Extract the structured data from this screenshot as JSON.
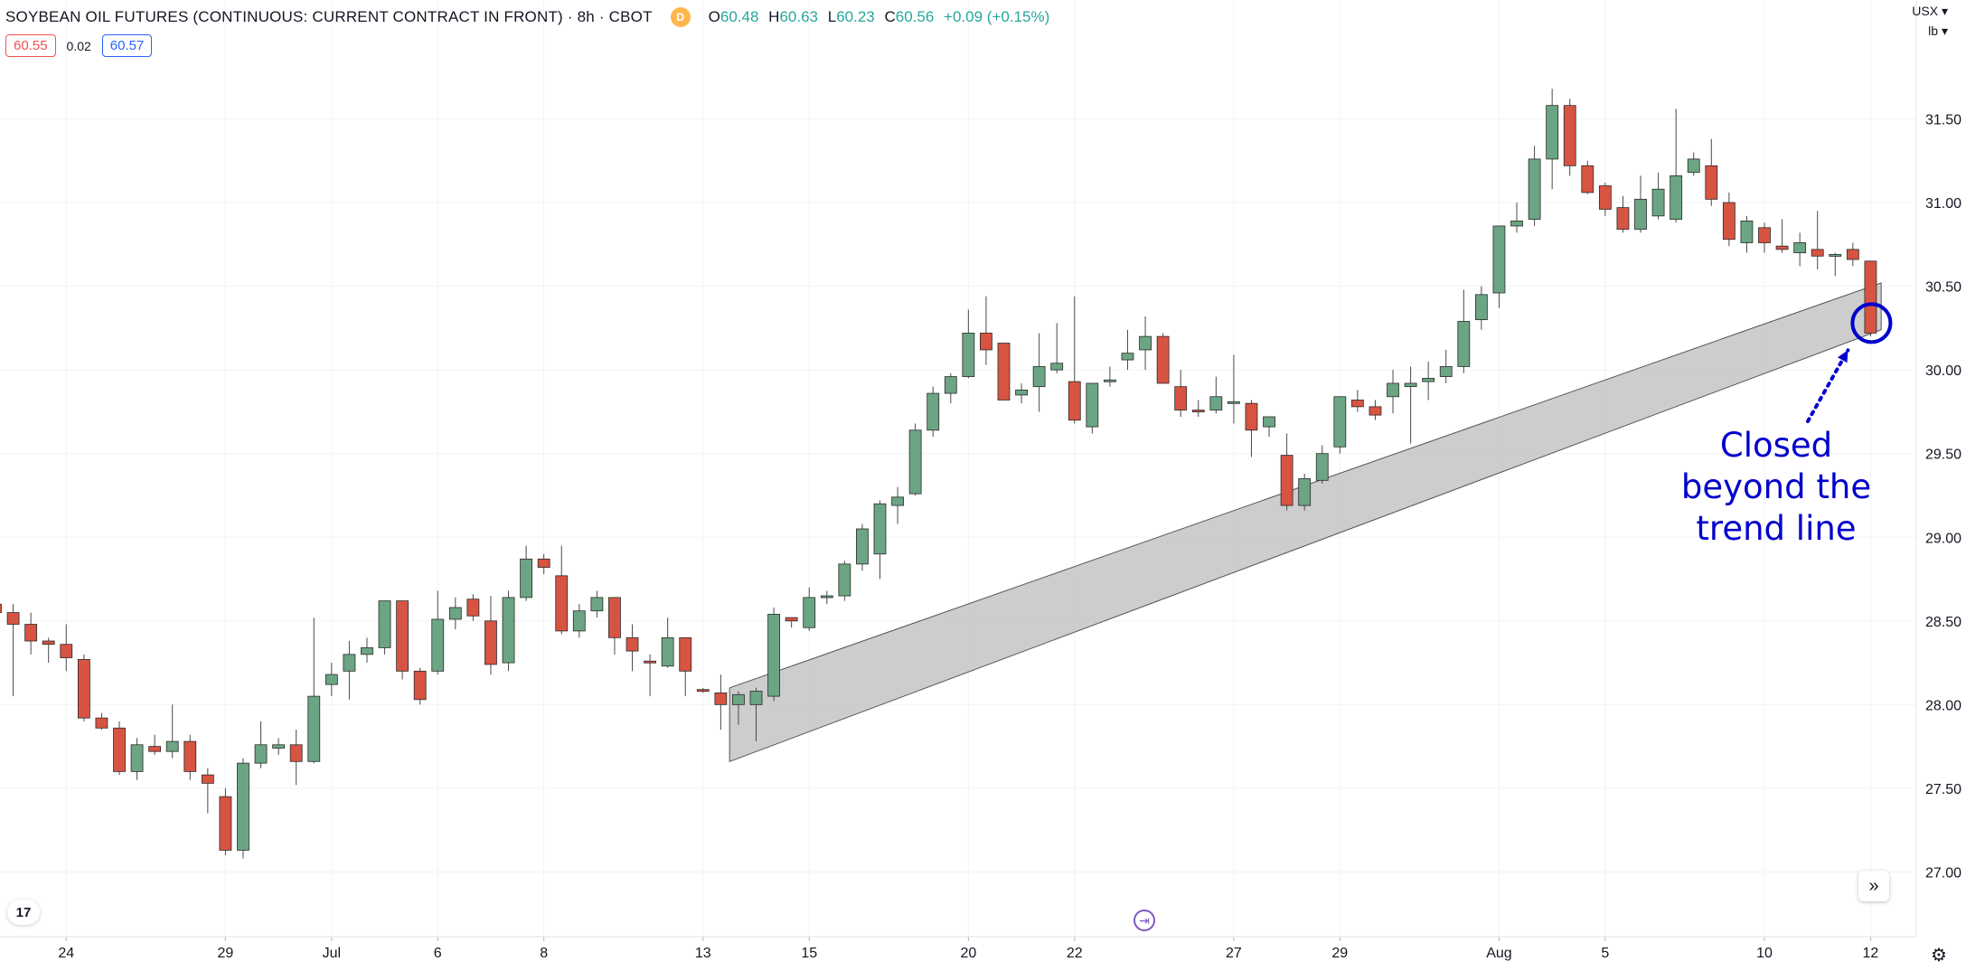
{
  "header": {
    "symbol": "SOYBEAN OIL FUTURES (CONTINUOUS: CURRENT CONTRACT IN FRONT) · 8h · CBOT",
    "delay_badge": "D",
    "open_label": "O",
    "open": "60.48",
    "high_label": "H",
    "high": "60.63",
    "low_label": "L",
    "low": "60.23",
    "close_label": "C",
    "close": "60.56",
    "change": "+0.09 (+0.15%)"
  },
  "quote": {
    "bid": "60.55",
    "spread": "0.02",
    "ask": "60.57"
  },
  "currency": {
    "code": "USX",
    "unit": "lb"
  },
  "buttons": {
    "tv_logo": "17",
    "scroll_right": "»",
    "goto_date": "⇥",
    "settings": "⚙"
  },
  "annotation": {
    "line1": "Closed",
    "line2": "beyond the",
    "line3": "trend line"
  },
  "colors": {
    "up": "#6ba583",
    "down": "#d75442",
    "annotation": "#0000cc",
    "trend_fill": "#c8c8c8"
  },
  "chart_data": {
    "type": "candlestick",
    "ylim": [
      26.7,
      31.9
    ],
    "y_ticks": [
      "27.00",
      "27.50",
      "28.00",
      "28.50",
      "29.00",
      "29.50",
      "30.00",
      "30.50",
      "31.00",
      "31.50"
    ],
    "x_ticks": [
      {
        "label": "24",
        "index": 4
      },
      {
        "label": "29",
        "index": 13
      },
      {
        "label": "Jul",
        "index": 19
      },
      {
        "label": "6",
        "index": 25
      },
      {
        "label": "8",
        "index": 31
      },
      {
        "label": "13",
        "index": 40
      },
      {
        "label": "15",
        "index": 46
      },
      {
        "label": "20",
        "index": 55
      },
      {
        "label": "22",
        "index": 61
      },
      {
        "label": "27",
        "index": 70
      },
      {
        "label": "29",
        "index": 76
      },
      {
        "label": "Aug",
        "index": 85
      },
      {
        "label": "5",
        "index": 91
      },
      {
        "label": "10",
        "index": 100
      },
      {
        "label": "12",
        "index": 106
      }
    ],
    "candles": [
      [
        28.6,
        28.65,
        28.5,
        28.55
      ],
      [
        28.55,
        28.6,
        28.05,
        28.48
      ],
      [
        28.48,
        28.55,
        28.3,
        28.38
      ],
      [
        28.38,
        28.4,
        28.25,
        28.36
      ],
      [
        28.36,
        28.48,
        28.2,
        28.28
      ],
      [
        28.27,
        28.3,
        27.9,
        27.92
      ],
      [
        27.92,
        27.95,
        27.85,
        27.86
      ],
      [
        27.86,
        27.9,
        27.58,
        27.6
      ],
      [
        27.6,
        27.8,
        27.55,
        27.76
      ],
      [
        27.75,
        27.82,
        27.7,
        27.72
      ],
      [
        27.72,
        28.0,
        27.68,
        27.78
      ],
      [
        27.78,
        27.82,
        27.55,
        27.6
      ],
      [
        27.58,
        27.62,
        27.35,
        27.53
      ],
      [
        27.45,
        27.5,
        27.1,
        27.13
      ],
      [
        27.13,
        27.68,
        27.08,
        27.65
      ],
      [
        27.65,
        27.9,
        27.62,
        27.76
      ],
      [
        27.74,
        27.8,
        27.7,
        27.76
      ],
      [
        27.76,
        27.85,
        27.52,
        27.66
      ],
      [
        27.66,
        28.52,
        27.65,
        28.05
      ],
      [
        28.12,
        28.25,
        28.05,
        28.18
      ],
      [
        28.2,
        28.38,
        28.03,
        28.3
      ],
      [
        28.3,
        28.4,
        28.25,
        28.34
      ],
      [
        28.34,
        28.62,
        28.3,
        28.62
      ],
      [
        28.62,
        28.62,
        28.15,
        28.2
      ],
      [
        28.2,
        28.22,
        28.0,
        28.03
      ],
      [
        28.2,
        28.68,
        28.18,
        28.51
      ],
      [
        28.51,
        28.64,
        28.45,
        28.58
      ],
      [
        28.63,
        28.66,
        28.5,
        28.53
      ],
      [
        28.5,
        28.65,
        28.18,
        28.24
      ],
      [
        28.25,
        28.68,
        28.2,
        28.64
      ],
      [
        28.64,
        28.95,
        28.62,
        28.87
      ],
      [
        28.87,
        28.9,
        28.78,
        28.82
      ],
      [
        28.77,
        28.95,
        28.42,
        28.44
      ],
      [
        28.44,
        28.6,
        28.4,
        28.56
      ],
      [
        28.56,
        28.68,
        28.52,
        28.64
      ],
      [
        28.64,
        28.64,
        28.3,
        28.4
      ],
      [
        28.4,
        28.48,
        28.2,
        28.32
      ],
      [
        28.26,
        28.3,
        28.05,
        28.25
      ],
      [
        28.23,
        28.52,
        28.22,
        28.4
      ],
      [
        28.4,
        28.4,
        28.05,
        28.2
      ],
      [
        28.09,
        28.1,
        28.07,
        28.08
      ],
      [
        28.07,
        28.18,
        27.85,
        28.0
      ],
      [
        28.0,
        28.08,
        27.88,
        28.06
      ],
      [
        28.0,
        28.1,
        27.78,
        28.08
      ],
      [
        28.05,
        28.58,
        28.02,
        28.54
      ],
      [
        28.52,
        28.52,
        28.46,
        28.5
      ],
      [
        28.46,
        28.7,
        28.44,
        28.64
      ],
      [
        28.64,
        28.68,
        28.6,
        28.65
      ],
      [
        28.65,
        28.86,
        28.62,
        28.84
      ],
      [
        28.84,
        29.08,
        28.8,
        29.05
      ],
      [
        28.9,
        29.22,
        28.75,
        29.2
      ],
      [
        29.19,
        29.3,
        29.08,
        29.24
      ],
      [
        29.26,
        29.68,
        29.25,
        29.64
      ],
      [
        29.64,
        29.9,
        29.6,
        29.86
      ],
      [
        29.86,
        29.98,
        29.8,
        29.96
      ],
      [
        29.96,
        30.36,
        29.95,
        30.22
      ],
      [
        30.22,
        30.44,
        30.03,
        30.12
      ],
      [
        30.16,
        30.16,
        29.82,
        29.82
      ],
      [
        29.85,
        29.92,
        29.8,
        29.88
      ],
      [
        29.9,
        30.22,
        29.75,
        30.02
      ],
      [
        30.0,
        30.28,
        29.98,
        30.04
      ],
      [
        29.93,
        30.44,
        29.68,
        29.7
      ],
      [
        29.66,
        29.92,
        29.62,
        29.92
      ],
      [
        29.93,
        30.02,
        29.9,
        29.94
      ],
      [
        30.06,
        30.24,
        30.0,
        30.1
      ],
      [
        30.12,
        30.32,
        30.0,
        30.2
      ],
      [
        30.2,
        30.22,
        29.92,
        29.92
      ],
      [
        29.9,
        30.0,
        29.72,
        29.76
      ],
      [
        29.76,
        29.82,
        29.72,
        29.75
      ],
      [
        29.76,
        29.96,
        29.74,
        29.84
      ],
      [
        29.8,
        30.09,
        29.68,
        29.81
      ],
      [
        29.8,
        29.82,
        29.48,
        29.64
      ],
      [
        29.66,
        29.72,
        29.6,
        29.72
      ],
      [
        29.49,
        29.62,
        29.16,
        29.19
      ],
      [
        29.19,
        29.38,
        29.16,
        29.35
      ],
      [
        29.34,
        29.55,
        29.32,
        29.5
      ],
      [
        29.54,
        29.84,
        29.5,
        29.84
      ],
      [
        29.82,
        29.88,
        29.75,
        29.78
      ],
      [
        29.78,
        29.82,
        29.7,
        29.73
      ],
      [
        29.84,
        30.0,
        29.74,
        29.92
      ],
      [
        29.9,
        30.02,
        29.56,
        29.92
      ],
      [
        29.93,
        30.05,
        29.82,
        29.95
      ],
      [
        29.96,
        30.12,
        29.92,
        30.02
      ],
      [
        30.02,
        30.48,
        29.98,
        30.29
      ],
      [
        30.3,
        30.5,
        30.24,
        30.45
      ],
      [
        30.46,
        30.86,
        30.37,
        30.86
      ],
      [
        30.86,
        31.0,
        30.82,
        30.89
      ],
      [
        30.9,
        31.34,
        30.86,
        31.26
      ],
      [
        31.26,
        31.68,
        31.08,
        31.58
      ],
      [
        31.58,
        31.62,
        31.16,
        31.22
      ],
      [
        31.22,
        31.25,
        31.05,
        31.06
      ],
      [
        31.1,
        31.12,
        30.92,
        30.96
      ],
      [
        30.97,
        31.04,
        30.82,
        30.84
      ],
      [
        30.84,
        31.16,
        30.82,
        31.02
      ],
      [
        30.92,
        31.18,
        30.9,
        31.08
      ],
      [
        30.9,
        31.56,
        30.88,
        31.16
      ],
      [
        31.18,
        31.3,
        31.16,
        31.26
      ],
      [
        31.22,
        31.38,
        30.98,
        31.02
      ],
      [
        31.0,
        31.06,
        30.74,
        30.78
      ],
      [
        30.76,
        30.92,
        30.7,
        30.89
      ],
      [
        30.85,
        30.88,
        30.7,
        30.76
      ],
      [
        30.74,
        30.9,
        30.7,
        30.72
      ],
      [
        30.7,
        30.82,
        30.62,
        30.76
      ],
      [
        30.72,
        30.95,
        30.6,
        30.68
      ],
      [
        30.68,
        30.7,
        30.56,
        30.69
      ],
      [
        30.72,
        30.76,
        30.62,
        30.66
      ],
      [
        30.65,
        30.65,
        30.2,
        30.22
      ]
    ],
    "trend_band": {
      "start": {
        "index": 41.5,
        "upper": 28.1,
        "lower": 27.66
      },
      "end": {
        "index": 106.6,
        "upper": 30.52,
        "lower": 30.24
      }
    },
    "highlight": {
      "index": 106,
      "price": 30.28
    }
  }
}
